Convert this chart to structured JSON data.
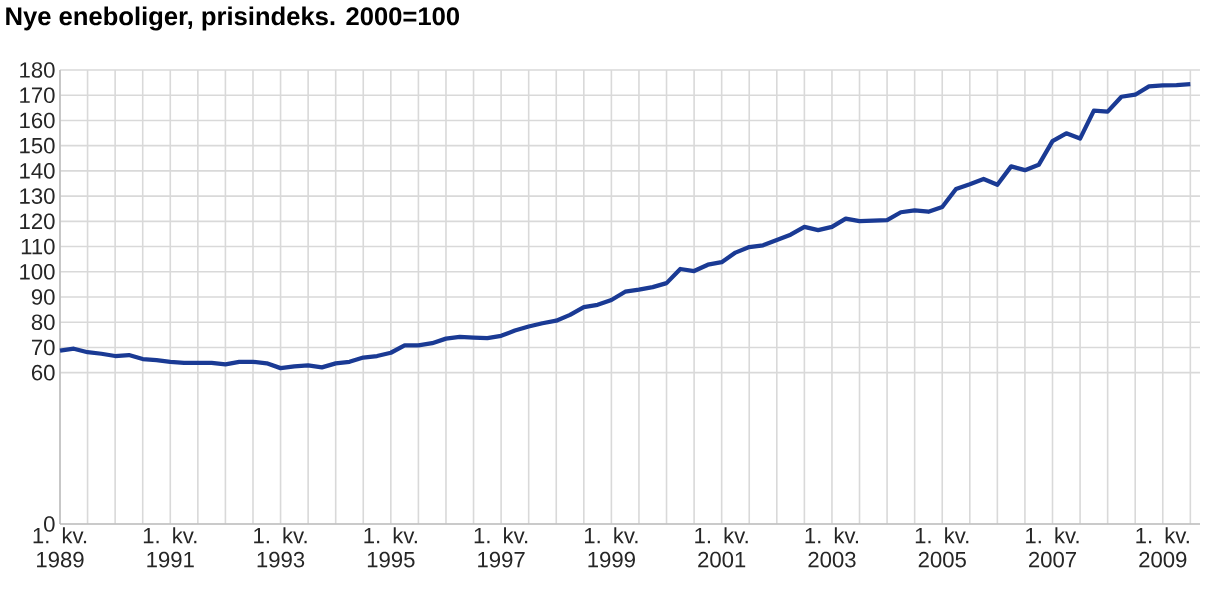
{
  "chart_data": {
    "type": "line",
    "title": "Nye eneboliger, prisindeks. 2000=100",
    "categories": [
      "1. kv. 1989",
      null,
      null,
      null,
      null,
      null,
      null,
      null,
      "1. kv. 1991",
      null,
      null,
      null,
      null,
      null,
      null,
      null,
      "1. kv. 1993",
      null,
      null,
      null,
      null,
      null,
      null,
      null,
      "1. kv. 1995",
      null,
      null,
      null,
      null,
      null,
      null,
      null,
      "1. kv. 1997",
      null,
      null,
      null,
      null,
      null,
      null,
      null,
      "1. kv. 1999",
      null,
      null,
      null,
      null,
      null,
      null,
      null,
      "1. kv. 2001",
      null,
      null,
      null,
      null,
      null,
      null,
      null,
      "1. kv. 2003",
      null,
      null,
      null,
      null,
      null,
      null,
      null,
      "1. kv. 2005",
      null,
      null,
      null,
      null,
      null,
      null,
      null,
      "1. kv. 2007",
      null,
      null,
      null,
      null,
      null,
      null,
      null,
      "1. kv. 2009",
      null,
      null
    ],
    "series": [
      {
        "color": "#1a3a94",
        "values": [
          68.7,
          69.5,
          68.1,
          67.5,
          66.6,
          67,
          65.4,
          65,
          64.3,
          63.9,
          63.9,
          63.9,
          63.3,
          64.3,
          64.3,
          63.7,
          61.8,
          62.5,
          62.9,
          62.1,
          63.7,
          64.3,
          66,
          66.6,
          67.9,
          70.8,
          70.8,
          71.7,
          73.5,
          74.2,
          73.9,
          73.7,
          74.6,
          76.7,
          78.3,
          79.6,
          80.6,
          82.9,
          86,
          86.9,
          88.8,
          92.1,
          92.9,
          93.9,
          95.5,
          101.1,
          100.3,
          102.8,
          103.8,
          107.6,
          109.8,
          110.5,
          112.6,
          114.7,
          117.8,
          116.5,
          117.8,
          121.1,
          120.1,
          120.3,
          120.5,
          123.6,
          124.3,
          123.8,
          125.7,
          132.8,
          134.7,
          136.8,
          134.5,
          141.8,
          140.3,
          142.4,
          151.8,
          154.9,
          152.8,
          163.9,
          163.5,
          169.4,
          170.2,
          173.5,
          173.9,
          174,
          174.4
        ]
      }
    ],
    "ylim": [
      0,
      180
    ],
    "yticks": [
      0,
      60,
      70,
      80,
      90,
      100,
      110,
      120,
      130,
      140,
      150,
      160,
      170,
      180
    ],
    "grid": true,
    "marker": "none",
    "line_style": "solid"
  }
}
